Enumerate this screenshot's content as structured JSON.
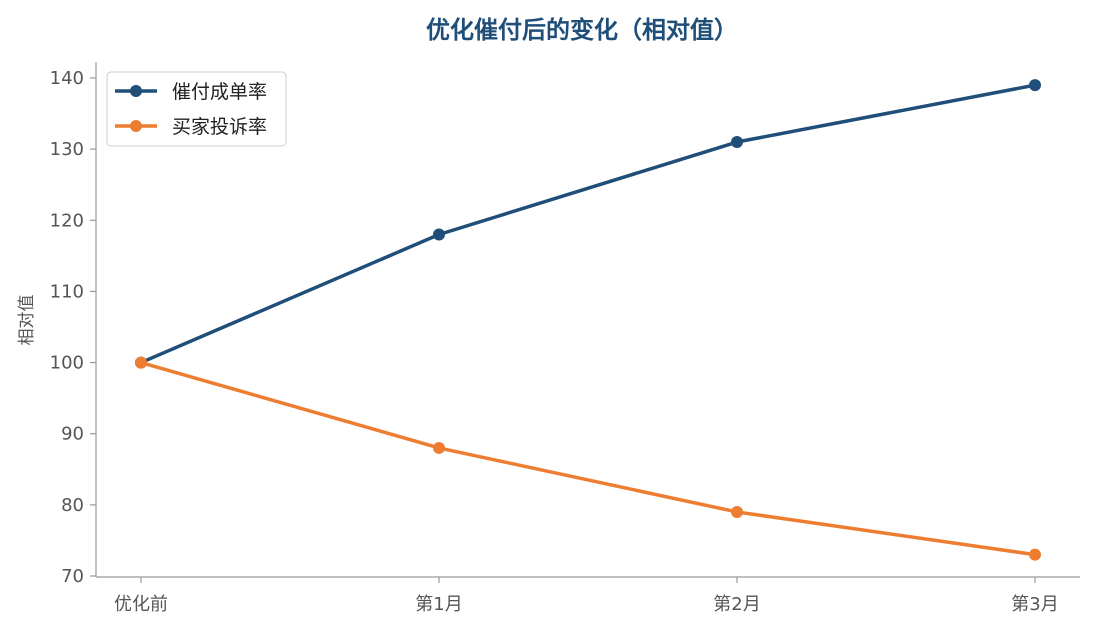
{
  "colors": {
    "title": "#1f4e79",
    "series_1": "#1f4e79",
    "series_2": "#ed7d31",
    "axis": "#999999",
    "tick_text": "#555555"
  },
  "chart_data": {
    "type": "line",
    "title": "优化催付后的变化（相对值）",
    "xlabel": "",
    "ylabel": "相对值",
    "categories": [
      "优化前",
      "第1月",
      "第2月",
      "第3月"
    ],
    "series": [
      {
        "name": "催付成单率",
        "values": [
          100,
          118,
          131,
          139
        ]
      },
      {
        "name": "买家投诉率",
        "values": [
          100,
          88,
          79,
          73
        ]
      }
    ],
    "ylim": [
      70,
      140
    ],
    "yticks": [
      70,
      80,
      90,
      100,
      110,
      120,
      130,
      140
    ],
    "grid": false,
    "legend_position": "top-left",
    "markers": true
  }
}
